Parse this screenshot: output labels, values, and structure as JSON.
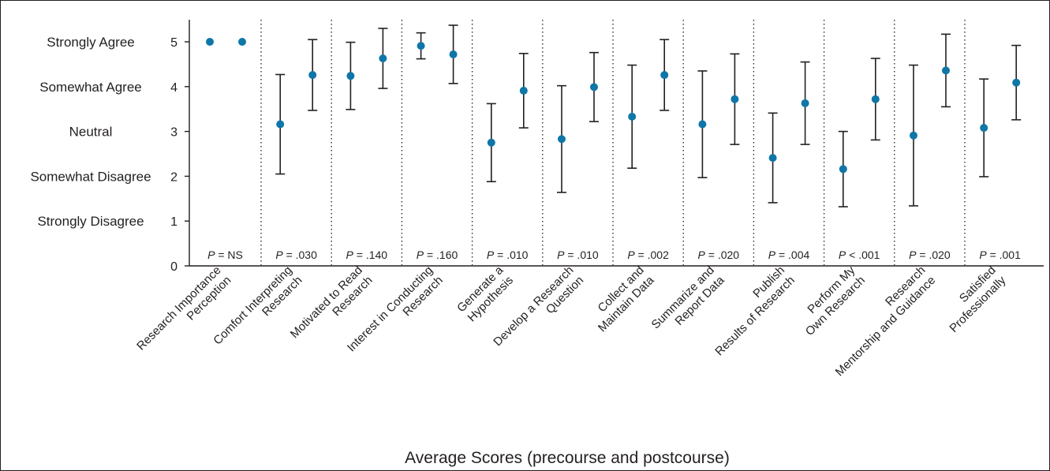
{
  "chart_data": {
    "type": "errorbar",
    "xlabel": "Average Scores (precourse and postcourse)",
    "ylim": [
      0,
      5.5
    ],
    "yticks": [
      0,
      1,
      2,
      3,
      4,
      5
    ],
    "likert_labels": [
      {
        "value": 5,
        "label": "Strongly Agree"
      },
      {
        "value": 4,
        "label": "Somewhat Agree"
      },
      {
        "value": 3,
        "label": "Neutral"
      },
      {
        "value": 2,
        "label": "Somewhat Disagree"
      },
      {
        "value": 1,
        "label": "Strongly Disagree"
      }
    ],
    "marker_color": "#0f76a8",
    "series_order": [
      "precourse",
      "postcourse"
    ],
    "groups": [
      {
        "label": [
          "Research Importance",
          "Perception"
        ],
        "p_prefix": "P",
        "p_rest": " = NS",
        "pre": {
          "mean": 5.0,
          "low": 5.0,
          "high": 5.0
        },
        "post": {
          "mean": 5.0,
          "low": 5.0,
          "high": 5.0
        }
      },
      {
        "label": [
          "Comfort Interpreting",
          "Research"
        ],
        "p_prefix": "P",
        "p_rest": " = .030",
        "pre": {
          "mean": 3.16,
          "low": 2.05,
          "high": 4.27
        },
        "post": {
          "mean": 4.26,
          "low": 3.47,
          "high": 5.05
        }
      },
      {
        "label": [
          "Motivated to Read",
          "Research"
        ],
        "p_prefix": "P",
        "p_rest": " = .140",
        "pre": {
          "mean": 4.24,
          "low": 3.49,
          "high": 4.99
        },
        "post": {
          "mean": 4.63,
          "low": 3.96,
          "high": 5.3
        }
      },
      {
        "label": [
          "Interest in Conducting",
          "Research"
        ],
        "p_prefix": "P",
        "p_rest": " = .160",
        "pre": {
          "mean": 4.91,
          "low": 4.62,
          "high": 5.2
        },
        "post": {
          "mean": 4.72,
          "low": 4.07,
          "high": 5.37
        }
      },
      {
        "label": [
          "Generate a",
          "Hypothesis"
        ],
        "p_prefix": "P",
        "p_rest": " = .010",
        "pre": {
          "mean": 2.75,
          "low": 1.88,
          "high": 3.62
        },
        "post": {
          "mean": 3.91,
          "low": 3.08,
          "high": 4.74
        }
      },
      {
        "label": [
          "Develop a Research",
          "Question"
        ],
        "p_prefix": "P",
        "p_rest": " = .010",
        "pre": {
          "mean": 2.83,
          "low": 1.64,
          "high": 4.02
        },
        "post": {
          "mean": 3.99,
          "low": 3.22,
          "high": 4.76
        }
      },
      {
        "label": [
          "Collect and",
          "Maintain Data"
        ],
        "p_prefix": "P",
        "p_rest": " = .002",
        "pre": {
          "mean": 3.33,
          "low": 2.18,
          "high": 4.48
        },
        "post": {
          "mean": 4.26,
          "low": 3.47,
          "high": 5.05
        }
      },
      {
        "label": [
          "Summarize and",
          "Report Data"
        ],
        "p_prefix": "P",
        "p_rest": " = .020",
        "pre": {
          "mean": 3.16,
          "low": 1.97,
          "high": 4.35
        },
        "post": {
          "mean": 3.72,
          "low": 2.71,
          "high": 4.73
        }
      },
      {
        "label": [
          "Publish",
          "Results of Research"
        ],
        "p_prefix": "P",
        "p_rest": " = .004",
        "pre": {
          "mean": 2.41,
          "low": 1.41,
          "high": 3.41
        },
        "post": {
          "mean": 3.63,
          "low": 2.71,
          "high": 4.55
        }
      },
      {
        "label": [
          "Perform My",
          "Own Research"
        ],
        "p_prefix": "P",
        "p_rest": " < .001",
        "pre": {
          "mean": 2.16,
          "low": 1.32,
          "high": 3.0
        },
        "post": {
          "mean": 3.72,
          "low": 2.81,
          "high": 4.63
        }
      },
      {
        "label": [
          "Research",
          "Mentorship and Guidance"
        ],
        "p_prefix": "P",
        "p_rest": " = .020",
        "pre": {
          "mean": 2.91,
          "low": 1.34,
          "high": 4.48
        },
        "post": {
          "mean": 4.36,
          "low": 3.55,
          "high": 5.17
        }
      },
      {
        "label": [
          "Satisfied",
          "Professionally"
        ],
        "p_prefix": "P",
        "p_rest": " = .001",
        "pre": {
          "mean": 3.08,
          "low": 1.99,
          "high": 4.17
        },
        "post": {
          "mean": 4.09,
          "low": 3.26,
          "high": 4.92
        }
      }
    ]
  }
}
